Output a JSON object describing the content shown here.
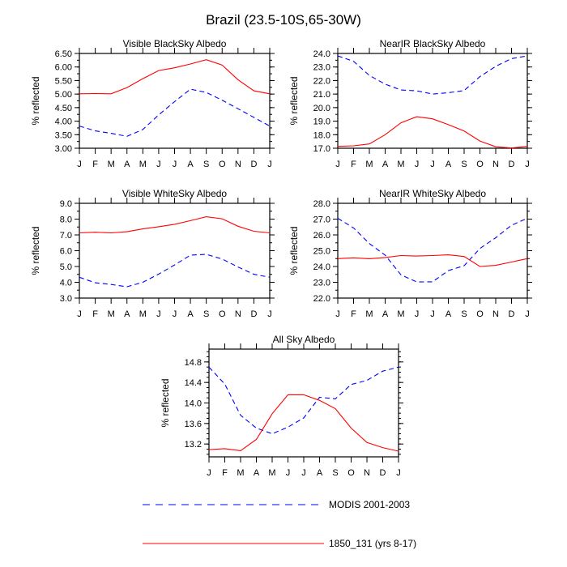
{
  "title": "Brazil (23.5-10S,65-30W)",
  "months": [
    "J",
    "F",
    "M",
    "A",
    "M",
    "J",
    "J",
    "A",
    "S",
    "O",
    "N",
    "D",
    "J"
  ],
  "legend": {
    "modis_label": "MODIS 2001-2003",
    "model_label": "1850_131 (yrs 8-17)"
  },
  "colors": {
    "modis": "#0000ff",
    "model": "#ff0000"
  },
  "chart_data": [
    {
      "type": "line",
      "title": "Visible BlackSky Albedo",
      "ylabel": "% reflected",
      "ylim": [
        3.0,
        6.5
      ],
      "yticks": [
        "3.00",
        "3.50",
        "4.00",
        "4.50",
        "5.00",
        "5.50",
        "6.00",
        "6.50"
      ],
      "yminor": 0.25,
      "x": [
        "J",
        "F",
        "M",
        "A",
        "M",
        "J",
        "J",
        "A",
        "S",
        "O",
        "N",
        "D",
        "J"
      ],
      "series": [
        {
          "name": "MODIS 2001-2003",
          "values": [
            3.82,
            3.64,
            3.55,
            3.44,
            3.69,
            4.23,
            4.72,
            5.18,
            5.06,
            4.77,
            4.46,
            4.14,
            3.82
          ]
        },
        {
          "name": "1850_131 (yrs 8-17)",
          "values": [
            5.01,
            5.02,
            5.01,
            5.24,
            5.57,
            5.87,
            5.97,
            6.11,
            6.27,
            6.07,
            5.53,
            5.12,
            5.01
          ]
        }
      ]
    },
    {
      "type": "line",
      "title": "NearIR BlackSky Albedo",
      "ylabel": "% reflected",
      "ylim": [
        17.0,
        24.0
      ],
      "yticks": [
        "17.0",
        "18.0",
        "19.0",
        "20.0",
        "21.0",
        "22.0",
        "23.0",
        "24.0"
      ],
      "yminor": 0.5,
      "x": [
        "J",
        "F",
        "M",
        "A",
        "M",
        "J",
        "J",
        "A",
        "S",
        "O",
        "N",
        "D",
        "J"
      ],
      "series": [
        {
          "name": "MODIS 2001-2003",
          "values": [
            23.82,
            23.42,
            22.38,
            21.73,
            21.3,
            21.24,
            21.0,
            21.1,
            21.26,
            22.29,
            23.05,
            23.62,
            23.82
          ]
        },
        {
          "name": "1850_131 (yrs 8-17)",
          "values": [
            17.14,
            17.18,
            17.32,
            18.0,
            18.88,
            19.33,
            19.17,
            18.74,
            18.27,
            17.53,
            17.11,
            17.02,
            17.14
          ]
        }
      ]
    },
    {
      "type": "line",
      "title": "Visible WhiteSky Albedo",
      "ylabel": "% reflected",
      "ylim": [
        3.0,
        9.0
      ],
      "yticks": [
        "3.0",
        "4.0",
        "5.0",
        "6.0",
        "7.0",
        "8.0",
        "9.0"
      ],
      "yminor": 0.5,
      "x": [
        "J",
        "F",
        "M",
        "A",
        "M",
        "J",
        "J",
        "A",
        "S",
        "O",
        "N",
        "D",
        "J"
      ],
      "series": [
        {
          "name": "MODIS 2001-2003",
          "values": [
            4.32,
            3.97,
            3.86,
            3.72,
            4.0,
            4.52,
            5.1,
            5.72,
            5.77,
            5.47,
            4.97,
            4.51,
            4.32
          ]
        },
        {
          "name": "1850_131 (yrs 8-17)",
          "values": [
            7.13,
            7.17,
            7.13,
            7.2,
            7.38,
            7.52,
            7.67,
            7.9,
            8.15,
            8.02,
            7.55,
            7.23,
            7.13
          ]
        }
      ]
    },
    {
      "type": "line",
      "title": "NearIR WhiteSky Albedo",
      "ylabel": "% reflected",
      "ylim": [
        22.0,
        28.0
      ],
      "yticks": [
        "22.0",
        "23.0",
        "24.0",
        "25.0",
        "26.0",
        "27.0",
        "28.0"
      ],
      "yminor": 0.5,
      "x": [
        "J",
        "F",
        "M",
        "A",
        "M",
        "J",
        "J",
        "A",
        "S",
        "O",
        "N",
        "D",
        "J"
      ],
      "series": [
        {
          "name": "MODIS 2001-2003",
          "values": [
            27.05,
            26.44,
            25.45,
            24.72,
            23.47,
            23.02,
            23.03,
            23.74,
            24.05,
            25.14,
            25.82,
            26.61,
            27.05
          ]
        },
        {
          "name": "1850_131 (yrs 8-17)",
          "values": [
            24.5,
            24.55,
            24.49,
            24.57,
            24.69,
            24.66,
            24.69,
            24.74,
            24.63,
            24.0,
            24.07,
            24.28,
            24.5
          ]
        }
      ]
    },
    {
      "type": "line",
      "title": "All Sky Albedo",
      "ylabel": "% reflected",
      "ylim": [
        12.95,
        15.05
      ],
      "yticks": [
        "13.2",
        "13.6",
        "14.0",
        "14.4",
        "14.8"
      ],
      "ytickvals": [
        13.2,
        13.6,
        14.0,
        14.4,
        14.8
      ],
      "yminor": 0.1,
      "x": [
        "J",
        "F",
        "M",
        "A",
        "M",
        "J",
        "J",
        "A",
        "S",
        "O",
        "N",
        "D",
        "J"
      ],
      "series": [
        {
          "name": "MODIS 2001-2003",
          "values": [
            14.7,
            14.37,
            13.76,
            13.51,
            13.4,
            13.53,
            13.71,
            14.11,
            14.08,
            14.36,
            14.44,
            14.62,
            14.7
          ]
        },
        {
          "name": "1850_131 (yrs 8-17)",
          "values": [
            13.09,
            13.11,
            13.07,
            13.29,
            13.79,
            14.16,
            14.16,
            14.05,
            13.89,
            13.51,
            13.23,
            13.13,
            13.06
          ]
        }
      ]
    }
  ]
}
